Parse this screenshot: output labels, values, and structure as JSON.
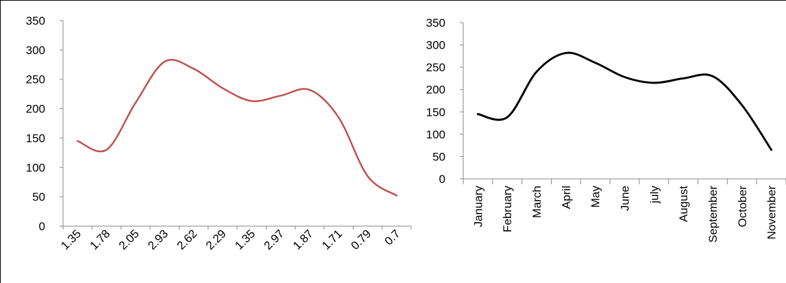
{
  "chart_data": [
    {
      "type": "line",
      "smooth": true,
      "categories": [
        "1.35",
        "1.78",
        "2.05",
        "2.93",
        "2.62",
        "2.29",
        "1.35",
        "2.97",
        "1.87",
        "1.71",
        "0.79",
        "0.7"
      ],
      "series": [
        {
          "values": [
            145,
            130,
            210,
            280,
            268,
            235,
            213,
            222,
            232,
            185,
            85,
            52
          ],
          "color": "#c0504d"
        }
      ],
      "title": "",
      "xlabel": "",
      "ylabel": "",
      "ylim": [
        0,
        350
      ],
      "yticks": [
        "0",
        "50",
        "100",
        "150",
        "200",
        "250",
        "300",
        "350"
      ],
      "grid": false,
      "legend": "none"
    },
    {
      "type": "line",
      "smooth": true,
      "categories": [
        "January",
        "February",
        "March",
        "April",
        "May",
        "June",
        "july",
        "August",
        "September",
        "October",
        "November"
      ],
      "series": [
        {
          "values": [
            145,
            138,
            240,
            282,
            260,
            228,
            215,
            225,
            230,
            165,
            65
          ],
          "color": "#000000"
        }
      ],
      "title": "",
      "xlabel": "",
      "ylabel": "",
      "ylim": [
        0,
        350
      ],
      "yticks": [
        "0",
        "50",
        "100",
        "150",
        "200",
        "250",
        "300",
        "350"
      ],
      "grid": false,
      "legend": "none"
    }
  ]
}
